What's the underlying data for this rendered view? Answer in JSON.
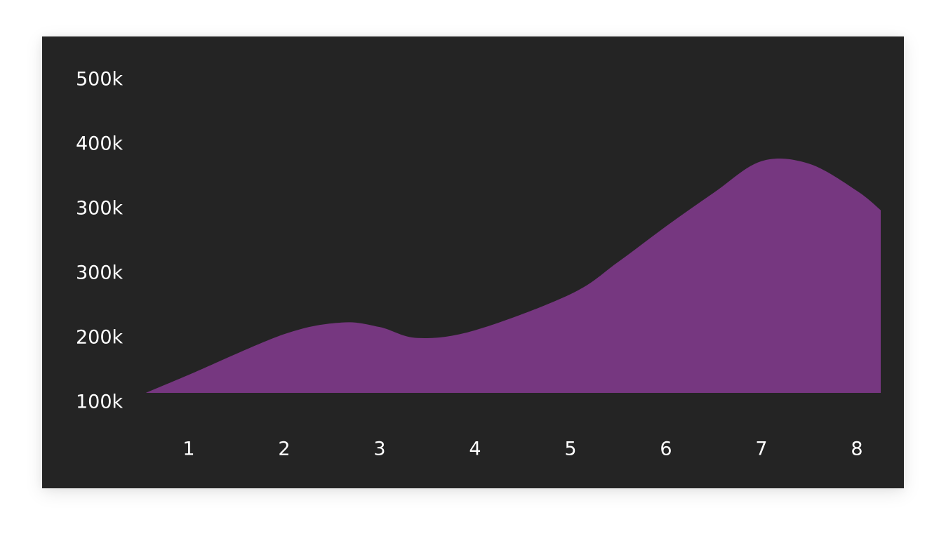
{
  "chart_data": {
    "type": "area",
    "title": "",
    "xlabel": "",
    "ylabel": "",
    "categories": [
      "1",
      "2",
      "3",
      "4",
      "5",
      "6",
      "7",
      "8"
    ],
    "y_tick_labels": [
      "500k",
      "400k",
      "300k",
      "300k",
      "200k",
      "100k"
    ],
    "series": [
      {
        "x": [
          0.55,
          1.0,
          2.0,
          2.6,
          3.0,
          3.4,
          4.0,
          5.0,
          5.5,
          6.0,
          6.5,
          7.0,
          7.5,
          8.0,
          8.25
        ],
        "values": [
          100000,
          128000,
          191000,
          209000,
          202000,
          185000,
          197000,
          253000,
          303000,
          358000,
          410000,
          459000,
          455000,
          413000,
          383000
        ]
      }
    ],
    "xlim": [
      0.55,
      8.25
    ],
    "ylim": [
      100000,
      550000
    ],
    "grid": false,
    "legend": "none",
    "colors": {
      "background": "#242424",
      "area": "#763780",
      "text": "#ffffff"
    }
  }
}
